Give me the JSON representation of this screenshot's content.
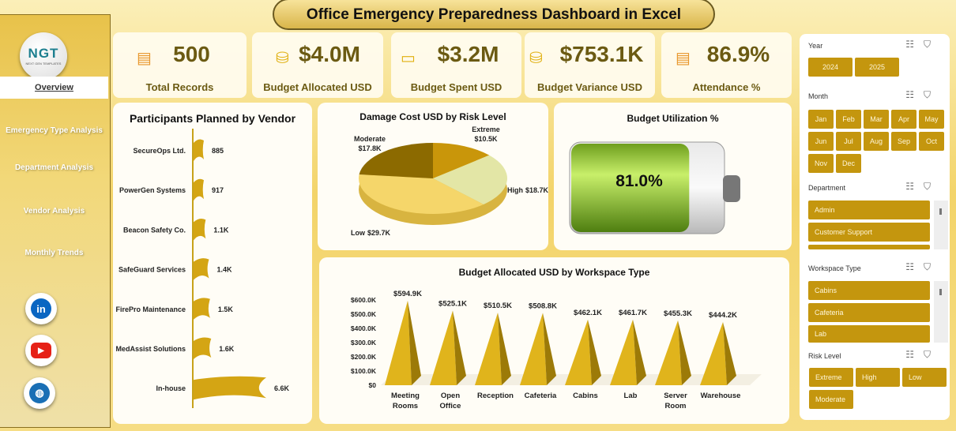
{
  "title": "Office Emergency Preparedness Dashboard in Excel",
  "logo": {
    "text": "NGT",
    "subtitle": "NEXT GEN TEMPLATES"
  },
  "nav": [
    {
      "label": "Overview",
      "active": true
    },
    {
      "label": "Emergency Type Analysis"
    },
    {
      "label": "Department Analysis"
    },
    {
      "label": "Vendor Analysis"
    },
    {
      "label": "Monthly Trends"
    }
  ],
  "social": [
    {
      "icon": "linkedin-icon",
      "label": "in",
      "color": "#0a66c2"
    },
    {
      "icon": "youtube-icon",
      "label": "▶",
      "color": "#e62117"
    },
    {
      "icon": "globe-icon",
      "label": "◍",
      "color": "#1a6fb5"
    }
  ],
  "kpis": [
    {
      "value": "500",
      "label": "Total Records",
      "icon": "document-icon"
    },
    {
      "value": "$4.0M",
      "label": "Budget Allocated USD",
      "icon": "coins-icon"
    },
    {
      "value": "$3.2M",
      "label": "Budget Spent USD",
      "icon": "cash-icon"
    },
    {
      "value": "$753.1K",
      "label": "Budget Variance USD",
      "icon": "coins-icon"
    },
    {
      "value": "86.9%",
      "label": "Attendance %",
      "icon": "document-icon"
    }
  ],
  "vendor_chart": {
    "title": "Participants Planned by Vendor"
  },
  "pie_chart": {
    "title": "Damage Cost USD by Risk Level"
  },
  "gauge": {
    "title": "Budget Utilization %",
    "value": 81.0,
    "label": "81.0%"
  },
  "bar_chart": {
    "title": "Budget Allocated USD by Workspace Type"
  },
  "chart_data": [
    {
      "type": "bar",
      "orientation": "horizontal",
      "title": "Participants Planned by Vendor",
      "categories": [
        "SecureOps Ltd.",
        "PowerGen Systems",
        "Beacon Safety Co.",
        "SafeGuard Services",
        "FirePro Maintenance",
        "MedAssist Solutions",
        "In-house"
      ],
      "values": [
        885,
        917,
        1100,
        1400,
        1500,
        1600,
        6600
      ],
      "labels": [
        "885",
        "917",
        "1.1K",
        "1.4K",
        "1.5K",
        "1.6K",
        "6.6K"
      ],
      "color": "#d4a514"
    },
    {
      "type": "pie",
      "title": "Damage Cost USD by Risk Level",
      "categories": [
        "Extreme",
        "High",
        "Low",
        "Moderate"
      ],
      "values": [
        10.5,
        18.7,
        29.7,
        17.8
      ],
      "labels": [
        "$10.5K",
        "$18.7K",
        "$29.7K",
        "$17.8K"
      ],
      "colors": [
        "#c9960a",
        "#e3e6a6",
        "#f5d66a",
        "#8c6a00"
      ],
      "unit": "K USD"
    },
    {
      "type": "bar",
      "title": "Budget Allocated USD by Workspace Type",
      "categories": [
        "Meeting Rooms",
        "Open Office",
        "Reception",
        "Cafeteria",
        "Cabins",
        "Lab",
        "Server Room",
        "Warehouse"
      ],
      "values": [
        594.9,
        525.1,
        510.5,
        508.8,
        462.1,
        461.7,
        455.3,
        444.2
      ],
      "labels": [
        "$594.9K",
        "$525.1K",
        "$510.5K",
        "$508.8K",
        "$462.1K",
        "$461.7K",
        "$455.3K",
        "$444.2K"
      ],
      "yticks": [
        "$0",
        "$100.0K",
        "$200.0K",
        "$300.0K",
        "$400.0K",
        "$500.0K",
        "$600.0K"
      ],
      "ylim": [
        0,
        600
      ],
      "unit": "K USD",
      "color": "#d9ab14"
    }
  ],
  "slicers": {
    "year": {
      "title": "Year",
      "items": [
        "2024",
        "2025"
      ]
    },
    "month": {
      "title": "Month",
      "items": [
        "Jan",
        "Feb",
        "Mar",
        "Apr",
        "May",
        "Jun",
        "Jul",
        "Aug",
        "Sep",
        "Oct",
        "Nov",
        "Dec"
      ]
    },
    "department": {
      "title": "Department",
      "items": [
        "Admin",
        "Customer Support"
      ]
    },
    "workspace": {
      "title": "Workspace Type",
      "items": [
        "Cabins",
        "Cafeteria",
        "Lab"
      ]
    },
    "risk": {
      "title": "Risk Level",
      "items": [
        "Extreme",
        "High",
        "Low",
        "Moderate"
      ]
    }
  }
}
